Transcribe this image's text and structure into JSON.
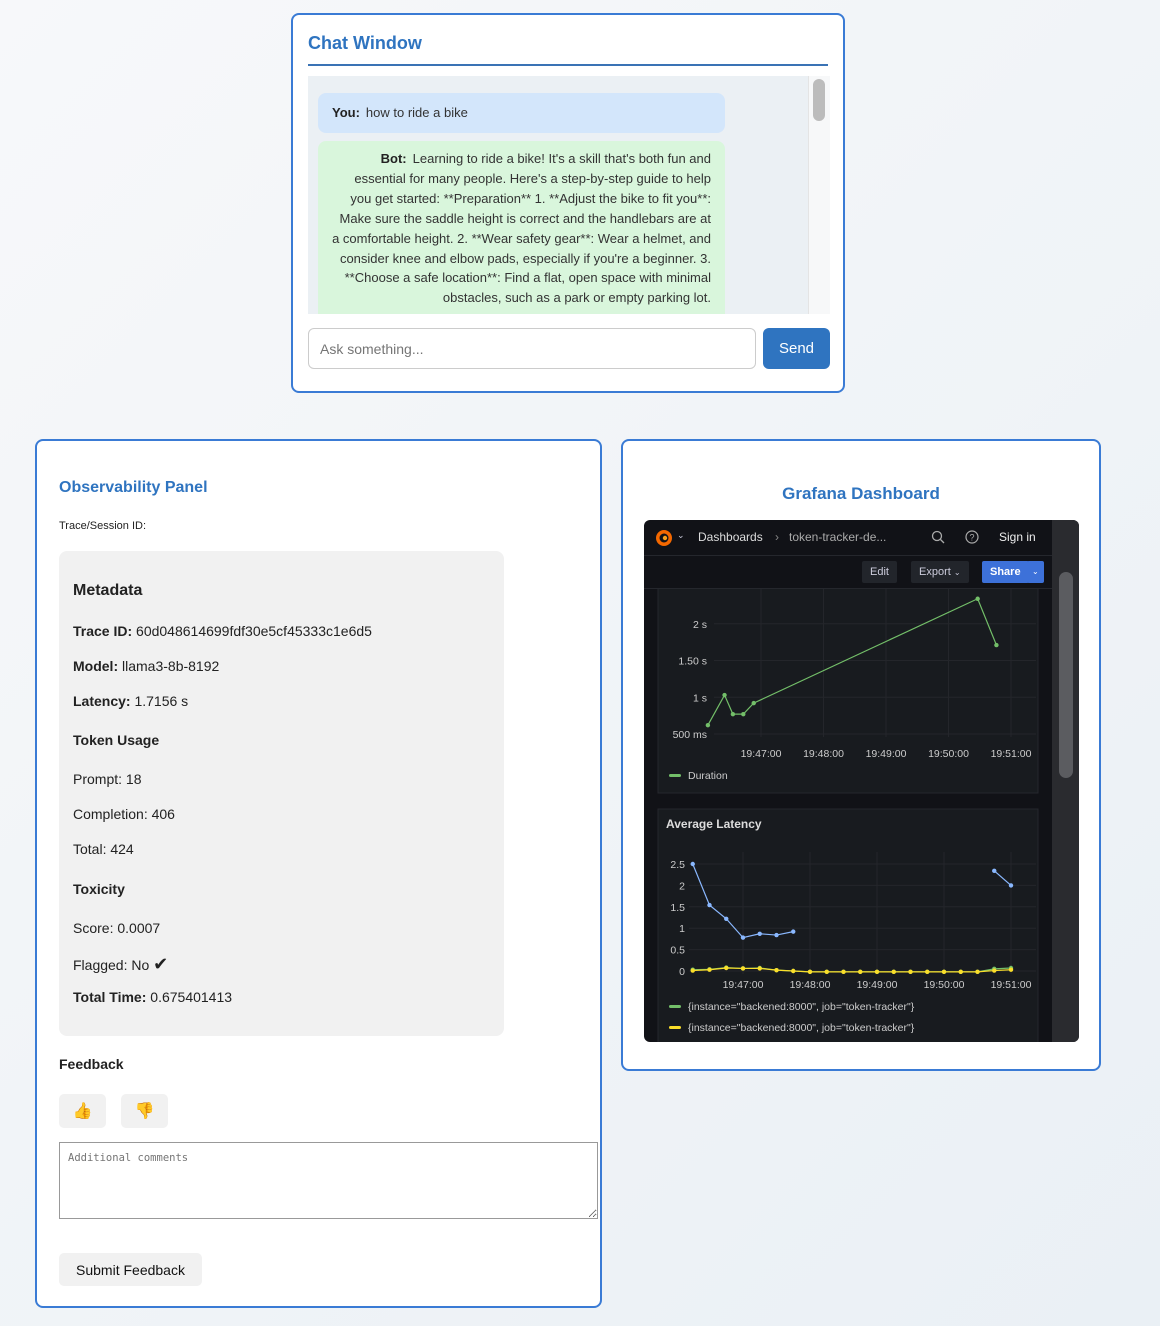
{
  "chat": {
    "title": "Chat Window",
    "messages": [
      {
        "sender": "You:",
        "text": "how to ride a bike"
      },
      {
        "sender": "Bot:",
        "text": "Learning to ride a bike! It's a skill that's both fun and essential for many people. Here's a step-by-step guide to help you get started: **Preparation** 1. **Adjust the bike to fit you**: Make sure the saddle height is correct and the handlebars are at a comfortable height. 2. **Wear safety gear**: Wear a helmet, and consider knee and elbow pads, especially if you're a beginner. 3. **Choose a safe location**: Find a flat, open space with minimal obstacles, such as a park or empty parking lot."
      }
    ],
    "input_placeholder": "Ask something...",
    "send_label": "Send"
  },
  "observability": {
    "title": "Observability Panel",
    "trace_label": "Trace/Session ID:",
    "metadata_title": "Metadata",
    "trace_id_label": "Trace ID:",
    "trace_id": "60d048614699fdf30e5cf45333c1e6d5",
    "model_label": "Model:",
    "model": "llama3-8b-8192",
    "latency_label": "Latency:",
    "latency": "1.7156 s",
    "token_usage_title": "Token Usage",
    "prompt": "Prompt: 18",
    "completion": "Completion: 406",
    "total": "Total: 424",
    "toxicity_title": "Toxicity",
    "score": "Score: 0.0007",
    "flagged": "Flagged: No",
    "flagged_icon": "checkmark",
    "total_time_label": "Total Time:",
    "total_time": "0.675401413",
    "feedback_title": "Feedback",
    "thumbs_up": "👍",
    "thumbs_down": "👎",
    "comments_placeholder": "Additional comments",
    "submit_label": "Submit Feedback"
  },
  "grafana": {
    "title": "Grafana Dashboard",
    "breadcrumb_root": "Dashboards",
    "breadcrumb_current": "token-tracker-de...",
    "sign_in": "Sign in",
    "edit": "Edit",
    "export": "Export",
    "share": "Share",
    "latency_panel_title": "Average Latency"
  },
  "chart_data": [
    {
      "type": "line",
      "title": "",
      "x_ticks": [
        "19:47:00",
        "19:48:00",
        "19:49:00",
        "19:50:00",
        "19:51:00"
      ],
      "y_ticks": [
        "500 ms",
        "1 s",
        "1.50 s",
        "2 s"
      ],
      "ylim": [
        0.5,
        2.5
      ],
      "y_unit": "s",
      "legend_placement": "bottom-left",
      "series": [
        {
          "name": "Duration",
          "color": "#73bf69",
          "points": [
            [
              "19:46:09",
              0.62
            ],
            [
              "19:46:25",
              1.03
            ],
            [
              "19:46:33",
              0.77
            ],
            [
              "19:46:43",
              0.77
            ],
            [
              "19:46:53",
              0.92
            ],
            [
              "19:50:28",
              2.34
            ],
            [
              "19:50:46",
              1.71
            ]
          ]
        }
      ]
    },
    {
      "type": "line",
      "title": "Average Latency",
      "x_ticks": [
        "19:47:00",
        "19:48:00",
        "19:49:00",
        "19:50:00",
        "19:51:00"
      ],
      "y_ticks": [
        "0",
        "0.5",
        "1",
        "1.5",
        "2",
        "2.5"
      ],
      "ylim": [
        0,
        2.5
      ],
      "legend_placement": "bottom-left",
      "series": [
        {
          "name": "",
          "color": "#8ab8ff",
          "points": [
            [
              "19:46:15",
              2.5
            ],
            [
              "19:46:30",
              1.54
            ],
            [
              "19:46:45",
              1.22
            ],
            [
              "19:47:00",
              0.78
            ],
            [
              "19:47:15",
              0.87
            ],
            [
              "19:47:30",
              0.84
            ],
            [
              "19:47:45",
              0.92
            ],
            null,
            [
              "19:50:45",
              2.34
            ],
            [
              "19:51:00",
              2.0
            ]
          ]
        },
        {
          "name": "{instance=\"backened:8000\", job=\"token-tracker\"}",
          "color": "#73bf69",
          "points": [
            [
              "19:46:15",
              0.03
            ],
            [
              "19:46:30",
              0.04
            ],
            [
              "19:46:45",
              0.08
            ],
            [
              "19:47:00",
              0.06
            ],
            [
              "19:47:15",
              0.07
            ],
            [
              "19:47:30",
              0.02
            ],
            [
              "19:47:45",
              0.0
            ],
            [
              "19:48:00",
              -0.02
            ],
            [
              "19:48:15",
              -0.02
            ],
            [
              "19:48:30",
              -0.02
            ],
            [
              "19:48:45",
              -0.02
            ],
            [
              "19:49:00",
              -0.02
            ],
            [
              "19:49:15",
              -0.02
            ],
            [
              "19:49:30",
              -0.02
            ],
            [
              "19:49:45",
              -0.02
            ],
            [
              "19:50:00",
              -0.02
            ],
            [
              "19:50:15",
              -0.02
            ],
            [
              "19:50:30",
              -0.02
            ],
            [
              "19:50:45",
              0.05
            ],
            [
              "19:51:00",
              0.07
            ]
          ]
        },
        {
          "name": "{instance=\"backened:8000\", job=\"token-tracker\"}",
          "color": "#fade2a",
          "points": [
            [
              "19:46:15",
              0.01
            ],
            [
              "19:46:30",
              0.03
            ],
            [
              "19:46:45",
              0.07
            ],
            [
              "19:47:00",
              0.06
            ],
            [
              "19:47:15",
              0.06
            ],
            [
              "19:47:30",
              0.02
            ],
            [
              "19:47:45",
              0.0
            ],
            [
              "19:48:00",
              -0.02
            ],
            [
              "19:48:15",
              -0.02
            ],
            [
              "19:48:30",
              -0.02
            ],
            [
              "19:48:45",
              -0.02
            ],
            [
              "19:49:00",
              -0.02
            ],
            [
              "19:49:15",
              -0.02
            ],
            [
              "19:49:30",
              -0.02
            ],
            [
              "19:49:45",
              -0.02
            ],
            [
              "19:50:00",
              -0.02
            ],
            [
              "19:50:15",
              -0.02
            ],
            [
              "19:50:30",
              -0.02
            ],
            [
              "19:50:45",
              0.01
            ],
            [
              "19:51:00",
              0.03
            ]
          ]
        }
      ]
    }
  ]
}
